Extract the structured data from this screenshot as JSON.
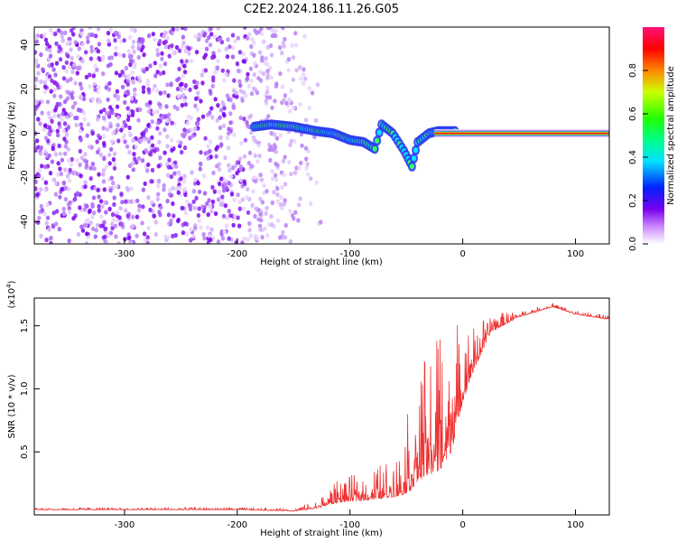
{
  "title": "C2E2.2024.186.11.26.G05",
  "chart_data": [
    {
      "type": "heatmap",
      "xlabel": "Height of straight line (km)",
      "ylabel": "Frequency (Hz)",
      "xlim": [
        -380,
        130
      ],
      "ylim": [
        -50,
        48
      ],
      "x_ticks": [
        -300,
        -200,
        -100,
        0,
        100
      ],
      "y_ticks": [
        -40,
        -20,
        0,
        20,
        40
      ],
      "colorbar": {
        "label": "Normalized spectral amplitude",
        "range": [
          0,
          1
        ],
        "ticks": [
          0.0,
          0.2,
          0.4,
          0.6,
          0.8
        ],
        "tick_labels": [
          "0.0",
          "0.2",
          "0.4",
          "0.6",
          "0.8"
        ]
      },
      "features": {
        "noise_region_x": [
          -380,
          -125
        ],
        "signal_track": [
          {
            "x": -185,
            "y": 3
          },
          {
            "x": -170,
            "y": 4
          },
          {
            "x": -150,
            "y": 3
          },
          {
            "x": -130,
            "y": 1
          },
          {
            "x": -115,
            "y": 0
          },
          {
            "x": -100,
            "y": -3
          },
          {
            "x": -88,
            "y": -4
          },
          {
            "x": -78,
            "y": -7
          },
          {
            "x": -72,
            "y": 4
          },
          {
            "x": -62,
            "y": 0
          },
          {
            "x": -52,
            "y": -8
          },
          {
            "x": -45,
            "y": -15
          },
          {
            "x": -40,
            "y": -4
          },
          {
            "x": -30,
            "y": 0
          },
          {
            "x": -22,
            "y": 1
          },
          {
            "x": -5,
            "y": 1
          }
        ],
        "steady_line": {
          "x_start": -25,
          "x_end": 130,
          "y": 0
        }
      }
    },
    {
      "type": "line",
      "xlabel": "Height of straight line (km)",
      "ylabel": "SNR (10 * v/v)",
      "y_multiplier_label": "(x10",
      "y_multiplier_exp": "4",
      "y_multiplier_close": ")",
      "xlim": [
        -380,
        130
      ],
      "ylim": [
        0,
        1.72
      ],
      "x_ticks": [
        -300,
        -200,
        -100,
        0,
        100
      ],
      "y_ticks": [
        0.5,
        1.0,
        1.5
      ],
      "y_tick_labels": [
        "0.5",
        "1.0",
        "1.5"
      ],
      "color": "#ee3333",
      "envelope": [
        {
          "x": -380,
          "base": 0.04,
          "amp": 0.02
        },
        {
          "x": -200,
          "base": 0.04,
          "amp": 0.02
        },
        {
          "x": -150,
          "base": 0.03,
          "amp": 0.02
        },
        {
          "x": -130,
          "base": 0.05,
          "amp": 0.06
        },
        {
          "x": -110,
          "base": 0.1,
          "amp": 0.18
        },
        {
          "x": -80,
          "base": 0.12,
          "amp": 0.25
        },
        {
          "x": -55,
          "base": 0.15,
          "amp": 0.35
        },
        {
          "x": -45,
          "base": 0.2,
          "amp": 0.8
        },
        {
          "x": -35,
          "base": 0.3,
          "amp": 0.9
        },
        {
          "x": -20,
          "base": 0.35,
          "amp": 1.3
        },
        {
          "x": -10,
          "base": 0.5,
          "amp": 1.2
        },
        {
          "x": 0,
          "base": 0.9,
          "amp": 0.6
        },
        {
          "x": 10,
          "base": 1.15,
          "amp": 0.35
        },
        {
          "x": 25,
          "base": 1.45,
          "amp": 0.15
        },
        {
          "x": 50,
          "base": 1.57,
          "amp": 0.04
        },
        {
          "x": 80,
          "base": 1.65,
          "amp": 0.03
        },
        {
          "x": 100,
          "base": 1.59,
          "amp": 0.03
        },
        {
          "x": 130,
          "base": 1.55,
          "amp": 0.03
        }
      ]
    }
  ]
}
